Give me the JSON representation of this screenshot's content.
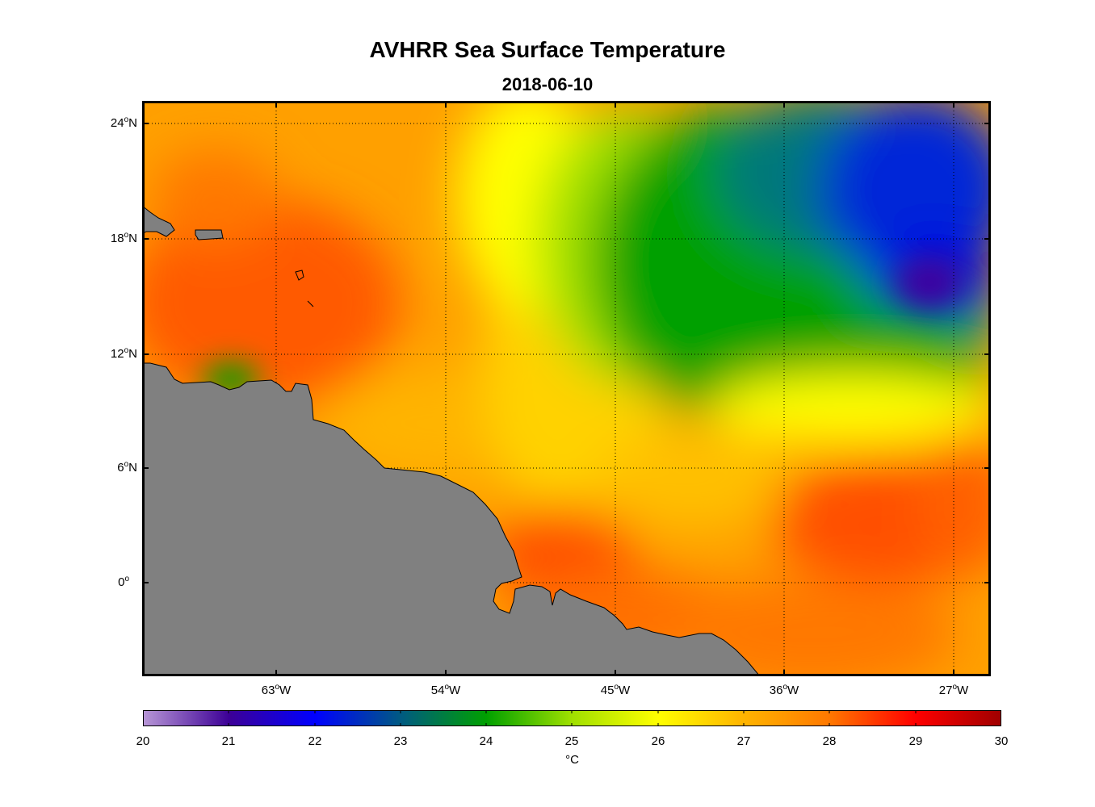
{
  "title": "AVHRR Sea Surface Temperature",
  "subtitle": "2018-06-10",
  "map": {
    "lat_labels": [
      "24",
      "18",
      "12",
      "6",
      "0"
    ],
    "lat_suffix": [
      "N",
      "N",
      "N",
      "N",
      ""
    ],
    "lon_labels": [
      "63",
      "54",
      "45",
      "36",
      "27"
    ],
    "lon_suffix": "W",
    "degree_symbol": "o",
    "land_color": "#808080",
    "grid_style": "dotted"
  },
  "colorbar": {
    "ticks": [
      "20",
      "21",
      "22",
      "23",
      "24",
      "25",
      "26",
      "27",
      "28",
      "29",
      "30"
    ],
    "unit": "°C",
    "range": [
      20,
      30
    ],
    "colors": [
      "#b796d6",
      "#3c0096",
      "#0000ff",
      "#005a82",
      "#00a000",
      "#a0e000",
      "#ffff00",
      "#ffb400",
      "#ff7800",
      "#ff0000",
      "#a00000"
    ]
  }
}
